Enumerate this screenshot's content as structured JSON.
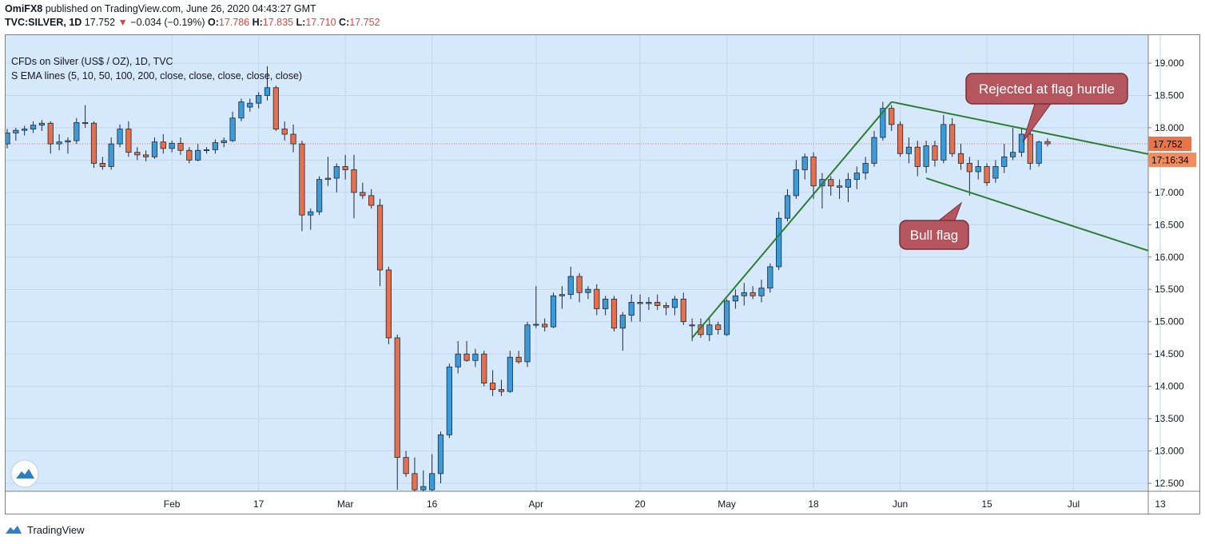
{
  "header": {
    "publisher": "OmiFX8",
    "published_text": "published on TradingView.com, June 26, 2020 04:43:27 GMT",
    "symbol": "TVC:SILVER, 1D",
    "last": "17.752",
    "change_arrow": "▼",
    "change": "−0.034 (−0.19%)",
    "o_label": "O:",
    "o": "17.786",
    "h_label": "H:",
    "h": "17.835",
    "l_label": "L:",
    "l": "17.710",
    "c_label": "C:",
    "c": "17.752"
  },
  "legend": {
    "title": "CFDs on Silver (US$ / OZ), 1D, TVC",
    "indicator": "S EMA lines (5, 10, 50, 100, 200, close, close, close, close, close)"
  },
  "price_badge": "17.752",
  "countdown_badge": "17:16:34",
  "annotations": {
    "rejected": "Rejected at flag hurdle",
    "bull_flag": "Bull flag"
  },
  "footer": {
    "brand": "TradingView",
    "logo_icon": "tradingview-logo-icon"
  },
  "colors": {
    "background": "#d5e8fc",
    "up": "#3b9bd8",
    "down": "#e86f4a",
    "trendline": "#2e7d32",
    "callout": "#b5565f",
    "price_line": "#e86f4a"
  },
  "chart_data": {
    "type": "candlestick",
    "ylim": [
      12.4,
      19.3
    ],
    "y_ticks": [
      "19.000",
      "18.500",
      "18.000",
      "17.500",
      "17.000",
      "16.500",
      "16.000",
      "15.500",
      "15.000",
      "14.500",
      "14.000",
      "13.500",
      "13.000",
      "12.500"
    ],
    "x_ticks": [
      {
        "label": "Feb",
        "index": 19
      },
      {
        "label": "17",
        "index": 29
      },
      {
        "label": "Mar",
        "index": 39
      },
      {
        "label": "16",
        "index": 49
      },
      {
        "label": "Apr",
        "index": 61
      },
      {
        "label": "20",
        "index": 73
      },
      {
        "label": "May",
        "index": 83
      },
      {
        "label": "18",
        "index": 93
      },
      {
        "label": "Jun",
        "index": 103
      },
      {
        "label": "15",
        "index": 113
      },
      {
        "label": "Jul",
        "index": 123
      },
      {
        "label": "13",
        "index": 133
      }
    ],
    "candles": [
      {
        "i": 0,
        "o": 17.75,
        "h": 17.98,
        "l": 17.68,
        "c": 17.92
      },
      {
        "i": 1,
        "o": 17.92,
        "h": 18.0,
        "l": 17.8,
        "c": 17.96
      },
      {
        "i": 2,
        "o": 17.96,
        "h": 18.03,
        "l": 17.88,
        "c": 17.98
      },
      {
        "i": 3,
        "o": 17.98,
        "h": 18.1,
        "l": 17.92,
        "c": 18.04
      },
      {
        "i": 4,
        "o": 18.04,
        "h": 18.12,
        "l": 17.95,
        "c": 18.07
      },
      {
        "i": 5,
        "o": 18.07,
        "h": 18.1,
        "l": 17.6,
        "c": 17.75
      },
      {
        "i": 6,
        "o": 17.75,
        "h": 17.9,
        "l": 17.65,
        "c": 17.78
      },
      {
        "i": 7,
        "o": 17.78,
        "h": 17.85,
        "l": 17.6,
        "c": 17.8
      },
      {
        "i": 8,
        "o": 17.8,
        "h": 18.15,
        "l": 17.75,
        "c": 18.08
      },
      {
        "i": 9,
        "o": 18.08,
        "h": 18.35,
        "l": 18.0,
        "c": 18.07
      },
      {
        "i": 10,
        "o": 18.07,
        "h": 18.1,
        "l": 17.38,
        "c": 17.45
      },
      {
        "i": 11,
        "o": 17.45,
        "h": 17.55,
        "l": 17.35,
        "c": 17.4
      },
      {
        "i": 12,
        "o": 17.4,
        "h": 17.85,
        "l": 17.35,
        "c": 17.75
      },
      {
        "i": 13,
        "o": 17.75,
        "h": 18.05,
        "l": 17.7,
        "c": 17.98
      },
      {
        "i": 14,
        "o": 17.98,
        "h": 18.1,
        "l": 17.55,
        "c": 17.62
      },
      {
        "i": 15,
        "o": 17.62,
        "h": 17.7,
        "l": 17.5,
        "c": 17.58
      },
      {
        "i": 16,
        "o": 17.58,
        "h": 17.65,
        "l": 17.48,
        "c": 17.55
      },
      {
        "i": 17,
        "o": 17.55,
        "h": 17.85,
        "l": 17.52,
        "c": 17.78
      },
      {
        "i": 18,
        "o": 17.78,
        "h": 17.9,
        "l": 17.6,
        "c": 17.68
      },
      {
        "i": 19,
        "o": 17.68,
        "h": 17.8,
        "l": 17.62,
        "c": 17.76
      },
      {
        "i": 20,
        "o": 17.76,
        "h": 17.85,
        "l": 17.58,
        "c": 17.65
      },
      {
        "i": 21,
        "o": 17.65,
        "h": 17.7,
        "l": 17.45,
        "c": 17.5
      },
      {
        "i": 22,
        "o": 17.5,
        "h": 17.75,
        "l": 17.48,
        "c": 17.65
      },
      {
        "i": 23,
        "o": 17.65,
        "h": 17.7,
        "l": 17.6,
        "c": 17.66
      },
      {
        "i": 24,
        "o": 17.66,
        "h": 17.82,
        "l": 17.6,
        "c": 17.77
      },
      {
        "i": 25,
        "o": 17.77,
        "h": 17.85,
        "l": 17.7,
        "c": 17.8
      },
      {
        "i": 26,
        "o": 17.8,
        "h": 18.25,
        "l": 17.78,
        "c": 18.15
      },
      {
        "i": 27,
        "o": 18.15,
        "h": 18.45,
        "l": 18.1,
        "c": 18.4
      },
      {
        "i": 28,
        "o": 18.32,
        "h": 18.45,
        "l": 18.25,
        "c": 18.38
      },
      {
        "i": 29,
        "o": 18.38,
        "h": 18.55,
        "l": 18.3,
        "c": 18.5
      },
      {
        "i": 30,
        "o": 18.5,
        "h": 18.95,
        "l": 18.42,
        "c": 18.62
      },
      {
        "i": 31,
        "o": 18.62,
        "h": 18.65,
        "l": 17.95,
        "c": 17.98
      },
      {
        "i": 32,
        "o": 17.98,
        "h": 18.1,
        "l": 17.8,
        "c": 17.9
      },
      {
        "i": 33,
        "o": 17.9,
        "h": 18.05,
        "l": 17.62,
        "c": 17.75
      },
      {
        "i": 34,
        "o": 17.75,
        "h": 17.8,
        "l": 16.4,
        "c": 16.65
      },
      {
        "i": 35,
        "o": 16.65,
        "h": 16.75,
        "l": 16.42,
        "c": 16.7
      },
      {
        "i": 36,
        "o": 16.7,
        "h": 17.25,
        "l": 16.65,
        "c": 17.2
      },
      {
        "i": 37,
        "o": 17.2,
        "h": 17.55,
        "l": 17.1,
        "c": 17.22
      },
      {
        "i": 38,
        "o": 17.22,
        "h": 17.45,
        "l": 17.0,
        "c": 17.4
      },
      {
        "i": 39,
        "o": 17.4,
        "h": 17.58,
        "l": 17.2,
        "c": 17.35
      },
      {
        "i": 40,
        "o": 17.35,
        "h": 17.58,
        "l": 16.6,
        "c": 17.0
      },
      {
        "i": 41,
        "o": 17.0,
        "h": 17.15,
        "l": 16.9,
        "c": 16.95
      },
      {
        "i": 42,
        "o": 16.95,
        "h": 17.05,
        "l": 16.75,
        "c": 16.8
      },
      {
        "i": 43,
        "o": 16.8,
        "h": 16.9,
        "l": 15.55,
        "c": 15.8
      },
      {
        "i": 44,
        "o": 15.8,
        "h": 15.85,
        "l": 14.65,
        "c": 14.75
      },
      {
        "i": 45,
        "o": 14.75,
        "h": 14.8,
        "l": 12.4,
        "c": 12.9
      },
      {
        "i": 46,
        "o": 12.9,
        "h": 13.0,
        "l": 12.6,
        "c": 12.65
      },
      {
        "i": 47,
        "o": 12.65,
        "h": 12.9,
        "l": 12.25,
        "c": 12.4
      },
      {
        "i": 48,
        "o": 12.4,
        "h": 12.7,
        "l": 12.3,
        "c": 12.45
      },
      {
        "i": 49,
        "o": 12.4,
        "h": 12.95,
        "l": 12.38,
        "c": 12.65
      },
      {
        "i": 50,
        "o": 12.65,
        "h": 13.3,
        "l": 12.5,
        "c": 13.25
      },
      {
        "i": 51,
        "o": 13.25,
        "h": 14.35,
        "l": 13.2,
        "c": 14.3
      },
      {
        "i": 52,
        "o": 14.3,
        "h": 14.7,
        "l": 14.2,
        "c": 14.5
      },
      {
        "i": 53,
        "o": 14.5,
        "h": 14.7,
        "l": 14.38,
        "c": 14.4
      },
      {
        "i": 54,
        "o": 14.4,
        "h": 14.58,
        "l": 14.3,
        "c": 14.5
      },
      {
        "i": 55,
        "o": 14.5,
        "h": 14.55,
        "l": 14.0,
        "c": 14.05
      },
      {
        "i": 56,
        "o": 14.05,
        "h": 14.25,
        "l": 13.85,
        "c": 13.95
      },
      {
        "i": 57,
        "o": 13.95,
        "h": 14.1,
        "l": 13.85,
        "c": 13.92
      },
      {
        "i": 58,
        "o": 13.92,
        "h": 14.55,
        "l": 13.9,
        "c": 14.45
      },
      {
        "i": 59,
        "o": 14.45,
        "h": 14.55,
        "l": 14.35,
        "c": 14.38
      },
      {
        "i": 60,
        "o": 14.38,
        "h": 15.0,
        "l": 14.3,
        "c": 14.95
      },
      {
        "i": 61,
        "o": 14.95,
        "h": 15.55,
        "l": 14.9,
        "c": 14.96
      },
      {
        "i": 62,
        "o": 14.96,
        "h": 15.05,
        "l": 14.85,
        "c": 14.92
      },
      {
        "i": 63,
        "o": 14.92,
        "h": 15.45,
        "l": 14.9,
        "c": 15.4
      },
      {
        "i": 64,
        "o": 15.4,
        "h": 15.55,
        "l": 15.2,
        "c": 15.42
      },
      {
        "i": 65,
        "o": 15.42,
        "h": 15.85,
        "l": 15.35,
        "c": 15.7
      },
      {
        "i": 66,
        "o": 15.7,
        "h": 15.75,
        "l": 15.3,
        "c": 15.45
      },
      {
        "i": 67,
        "o": 15.45,
        "h": 15.55,
        "l": 15.35,
        "c": 15.5
      },
      {
        "i": 68,
        "o": 15.5,
        "h": 15.58,
        "l": 15.1,
        "c": 15.2
      },
      {
        "i": 69,
        "o": 15.2,
        "h": 15.4,
        "l": 15.1,
        "c": 15.35
      },
      {
        "i": 70,
        "o": 15.35,
        "h": 15.4,
        "l": 14.85,
        "c": 14.9
      },
      {
        "i": 71,
        "o": 14.9,
        "h": 15.15,
        "l": 14.55,
        "c": 15.1
      },
      {
        "i": 72,
        "o": 15.1,
        "h": 15.42,
        "l": 15.0,
        "c": 15.3
      },
      {
        "i": 73,
        "o": 15.3,
        "h": 15.42,
        "l": 15.0,
        "c": 15.28
      },
      {
        "i": 74,
        "o": 15.28,
        "h": 15.38,
        "l": 15.18,
        "c": 15.3
      },
      {
        "i": 75,
        "o": 15.3,
        "h": 15.42,
        "l": 15.18,
        "c": 15.25
      },
      {
        "i": 76,
        "o": 15.25,
        "h": 15.3,
        "l": 15.1,
        "c": 15.22
      },
      {
        "i": 77,
        "o": 15.22,
        "h": 15.4,
        "l": 15.1,
        "c": 15.35
      },
      {
        "i": 78,
        "o": 15.35,
        "h": 15.45,
        "l": 14.95,
        "c": 15.0
      },
      {
        "i": 79,
        "o": 14.95,
        "h": 15.05,
        "l": 14.7,
        "c": 14.95
      },
      {
        "i": 80,
        "o": 14.95,
        "h": 15.05,
        "l": 14.75,
        "c": 14.8
      },
      {
        "i": 81,
        "o": 14.8,
        "h": 15.05,
        "l": 14.7,
        "c": 14.95
      },
      {
        "i": 82,
        "o": 14.95,
        "h": 15.0,
        "l": 14.8,
        "c": 14.88
      },
      {
        "i": 83,
        "o": 14.8,
        "h": 15.35,
        "l": 14.78,
        "c": 15.32
      },
      {
        "i": 84,
        "o": 15.32,
        "h": 15.5,
        "l": 15.2,
        "c": 15.4
      },
      {
        "i": 85,
        "o": 15.4,
        "h": 15.6,
        "l": 15.25,
        "c": 15.45
      },
      {
        "i": 86,
        "o": 15.45,
        "h": 15.55,
        "l": 15.35,
        "c": 15.4
      },
      {
        "i": 87,
        "o": 15.4,
        "h": 15.65,
        "l": 15.3,
        "c": 15.52
      },
      {
        "i": 88,
        "o": 15.52,
        "h": 15.9,
        "l": 15.45,
        "c": 15.85
      },
      {
        "i": 89,
        "o": 15.85,
        "h": 16.7,
        "l": 15.8,
        "c": 16.6
      },
      {
        "i": 90,
        "o": 16.6,
        "h": 17.05,
        "l": 16.55,
        "c": 16.95
      },
      {
        "i": 91,
        "o": 16.95,
        "h": 17.5,
        "l": 16.9,
        "c": 17.35
      },
      {
        "i": 92,
        "o": 17.35,
        "h": 17.6,
        "l": 17.2,
        "c": 17.55
      },
      {
        "i": 93,
        "o": 17.55,
        "h": 17.62,
        "l": 16.9,
        "c": 17.1
      },
      {
        "i": 94,
        "o": 17.1,
        "h": 17.3,
        "l": 16.75,
        "c": 17.2
      },
      {
        "i": 95,
        "o": 17.2,
        "h": 17.25,
        "l": 16.95,
        "c": 17.1
      },
      {
        "i": 96,
        "o": 17.1,
        "h": 17.2,
        "l": 16.9,
        "c": 17.08
      },
      {
        "i": 97,
        "o": 17.08,
        "h": 17.3,
        "l": 16.85,
        "c": 17.2
      },
      {
        "i": 98,
        "o": 17.2,
        "h": 17.4,
        "l": 17.05,
        "c": 17.3
      },
      {
        "i": 99,
        "o": 17.3,
        "h": 17.55,
        "l": 17.2,
        "c": 17.45
      },
      {
        "i": 100,
        "o": 17.45,
        "h": 17.95,
        "l": 17.4,
        "c": 17.85
      },
      {
        "i": 101,
        "o": 17.85,
        "h": 18.4,
        "l": 17.8,
        "c": 18.3
      },
      {
        "i": 102,
        "o": 18.3,
        "h": 18.35,
        "l": 17.95,
        "c": 18.05
      },
      {
        "i": 103,
        "o": 18.05,
        "h": 18.1,
        "l": 17.55,
        "c": 17.6
      },
      {
        "i": 104,
        "o": 17.6,
        "h": 17.85,
        "l": 17.45,
        "c": 17.7
      },
      {
        "i": 105,
        "o": 17.7,
        "h": 17.8,
        "l": 17.25,
        "c": 17.4
      },
      {
        "i": 106,
        "o": 17.4,
        "h": 17.8,
        "l": 17.3,
        "c": 17.72
      },
      {
        "i": 107,
        "o": 17.72,
        "h": 17.8,
        "l": 17.4,
        "c": 17.5
      },
      {
        "i": 108,
        "o": 17.5,
        "h": 18.2,
        "l": 17.45,
        "c": 18.05
      },
      {
        "i": 109,
        "o": 18.05,
        "h": 18.15,
        "l": 17.55,
        "c": 17.6
      },
      {
        "i": 110,
        "o": 17.6,
        "h": 17.75,
        "l": 17.35,
        "c": 17.45
      },
      {
        "i": 111,
        "o": 17.45,
        "h": 17.55,
        "l": 16.95,
        "c": 17.32
      },
      {
        "i": 112,
        "o": 17.32,
        "h": 17.5,
        "l": 17.2,
        "c": 17.4
      },
      {
        "i": 113,
        "o": 17.4,
        "h": 17.45,
        "l": 17.1,
        "c": 17.15
      },
      {
        "i": 114,
        "o": 17.22,
        "h": 17.5,
        "l": 17.15,
        "c": 17.4
      },
      {
        "i": 115,
        "o": 17.4,
        "h": 17.75,
        "l": 17.3,
        "c": 17.55
      },
      {
        "i": 116,
        "o": 17.55,
        "h": 18.0,
        "l": 17.5,
        "c": 17.62
      },
      {
        "i": 117,
        "o": 17.62,
        "h": 18.0,
        "l": 17.55,
        "c": 17.9
      },
      {
        "i": 118,
        "o": 17.9,
        "h": 18.05,
        "l": 17.35,
        "c": 17.45
      },
      {
        "i": 119,
        "o": 17.45,
        "h": 17.8,
        "l": 17.4,
        "c": 17.78
      },
      {
        "i": 120,
        "o": 17.786,
        "h": 17.835,
        "l": 17.71,
        "c": 17.752
      }
    ],
    "current_price": 17.752,
    "trendlines": [
      {
        "name": "rally",
        "from": {
          "i": 79,
          "price": 14.75
        },
        "to": {
          "i": 102,
          "price": 18.4
        }
      },
      {
        "name": "flag-top",
        "from": {
          "i": 102,
          "price": 18.4
        },
        "to": {
          "i": 135,
          "price": 17.5
        }
      },
      {
        "name": "flag-bottom",
        "from": {
          "i": 106,
          "price": 17.22
        },
        "to": {
          "i": 135,
          "price": 15.95
        }
      }
    ]
  }
}
